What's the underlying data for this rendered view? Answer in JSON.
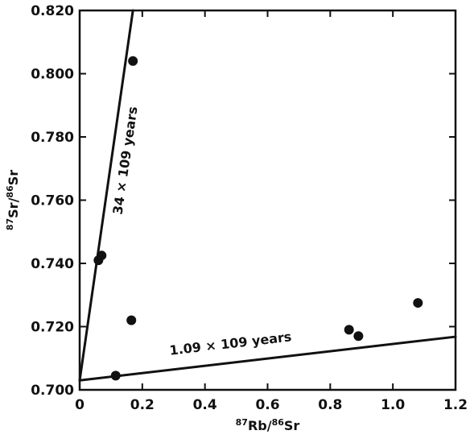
{
  "chart_data": {
    "type": "scatter",
    "title": "",
    "xlabel": {
      "prefix": "87",
      "base1": "Rb/",
      "mid": "86",
      "base2": "Sr"
    },
    "ylabel": {
      "prefix": "87",
      "base1": "Sr/",
      "mid": "86",
      "base2": "Sr"
    },
    "xlim": [
      0,
      1.2
    ],
    "ylim": [
      0.7,
      0.82
    ],
    "x_ticks": [
      0.0,
      0.2,
      0.4,
      0.6,
      0.8,
      1.0,
      1.2
    ],
    "x_tick_labels": [
      "0",
      "0.2",
      "0.4",
      "0.6",
      "0.8",
      "1.0",
      "1.2"
    ],
    "y_ticks": [
      0.7,
      0.72,
      0.74,
      0.76,
      0.78,
      0.8,
      0.82
    ],
    "y_tick_labels": [
      "0.700",
      "0.720",
      "0.740",
      "0.760",
      "0.780",
      "0.800",
      "0.820"
    ],
    "grid": false,
    "points": [
      {
        "x": 0.06,
        "y": 0.741
      },
      {
        "x": 0.07,
        "y": 0.7425
      },
      {
        "x": 0.17,
        "y": 0.804
      },
      {
        "x": 0.165,
        "y": 0.722
      },
      {
        "x": 0.115,
        "y": 0.7045
      },
      {
        "x": 0.86,
        "y": 0.719
      },
      {
        "x": 0.89,
        "y": 0.717
      },
      {
        "x": 1.08,
        "y": 0.7275
      }
    ],
    "lines": [
      {
        "label": "34 × 109 years",
        "start": {
          "x": 0.0,
          "y": 0.703
        },
        "end": {
          "x": 0.17,
          "y": 0.82
        }
      },
      {
        "label": "1.09 × 109 years",
        "start": {
          "x": 0.0,
          "y": 0.703
        },
        "end": {
          "x": 1.2,
          "y": 0.7168
        }
      }
    ]
  }
}
